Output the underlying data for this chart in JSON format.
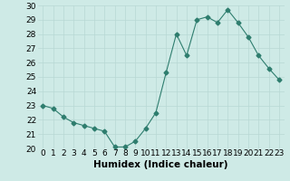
{
  "x": [
    0,
    1,
    2,
    3,
    4,
    5,
    6,
    7,
    8,
    9,
    10,
    11,
    12,
    13,
    14,
    15,
    16,
    17,
    18,
    19,
    20,
    21,
    22,
    23
  ],
  "y": [
    23.0,
    22.8,
    22.2,
    21.8,
    21.6,
    21.4,
    21.2,
    20.1,
    20.1,
    20.5,
    21.4,
    22.5,
    25.3,
    28.0,
    26.5,
    29.0,
    29.2,
    28.8,
    29.7,
    28.8,
    27.8,
    26.5,
    25.6,
    24.8
  ],
  "xlabel": "Humidex (Indice chaleur)",
  "ylim": [
    20,
    30
  ],
  "xlim": [
    -0.5,
    23.5
  ],
  "xticks": [
    0,
    1,
    2,
    3,
    4,
    5,
    6,
    7,
    8,
    9,
    10,
    11,
    12,
    13,
    14,
    15,
    16,
    17,
    18,
    19,
    20,
    21,
    22,
    23
  ],
  "yticks": [
    20,
    21,
    22,
    23,
    24,
    25,
    26,
    27,
    28,
    29,
    30
  ],
  "line_color": "#2e7d6e",
  "marker": "D",
  "marker_size": 2.5,
  "bg_color": "#ceeae6",
  "grid_color": "#b8d8d4",
  "tick_label_fontsize": 6.5,
  "xlabel_fontsize": 7.5
}
